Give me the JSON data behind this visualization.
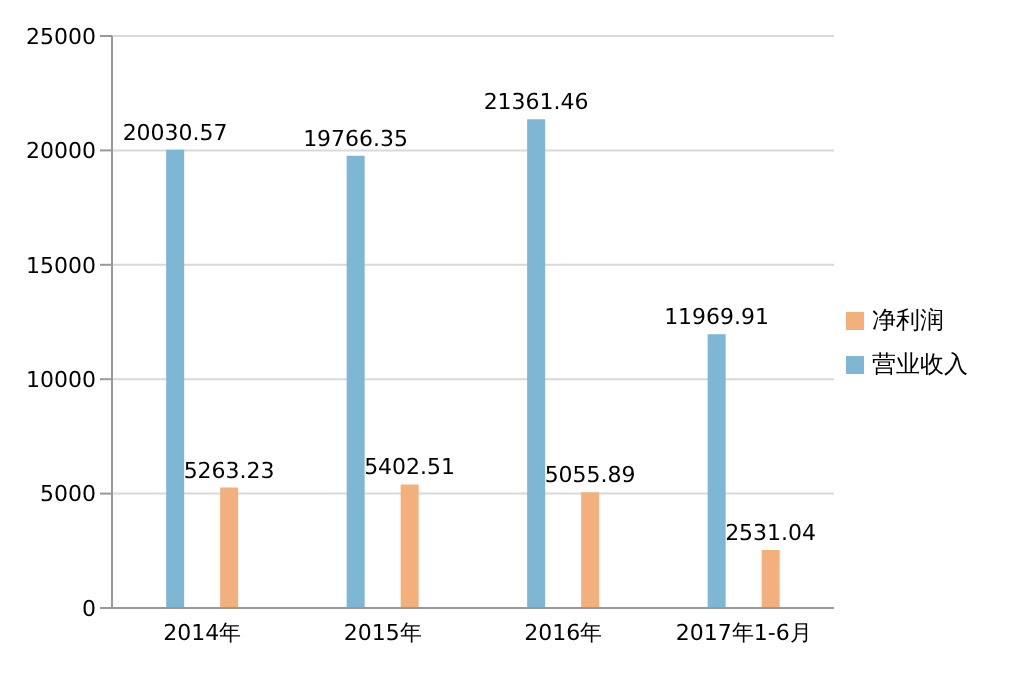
{
  "chart_data": {
    "type": "bar",
    "categories": [
      "2014年",
      "2015年",
      "2016年",
      "2017年1-6月"
    ],
    "series": [
      {
        "name": "营业收入",
        "color": "#7eb7d3",
        "values": [
          20030.57,
          19766.35,
          21361.46,
          11969.91
        ]
      },
      {
        "name": "净利润",
        "color": "#f4b07c",
        "values": [
          5263.23,
          5402.51,
          5055.89,
          2531.04
        ]
      }
    ],
    "ylim": [
      0,
      25000
    ],
    "yticks": [
      0,
      5000,
      10000,
      15000,
      20000,
      25000
    ],
    "grid": "y",
    "legend": "right",
    "data_labels": true
  }
}
